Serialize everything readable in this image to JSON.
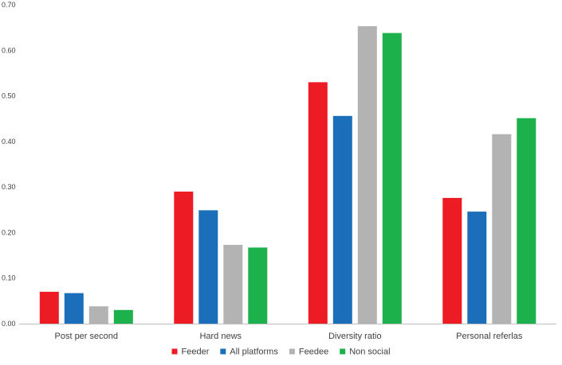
{
  "chart_data": {
    "type": "bar",
    "categories": [
      "Post per second",
      "Hard news",
      "Diversity ratio",
      "Personal referlas"
    ],
    "series": [
      {
        "name": "Feeder",
        "color": "#ED1C24",
        "values": [
          0.07,
          0.29,
          0.53,
          0.276
        ]
      },
      {
        "name": "All platforms",
        "color": "#1B6FBA",
        "values": [
          0.067,
          0.249,
          0.456,
          0.246
        ]
      },
      {
        "name": "Feedee",
        "color": "#B3B3B3",
        "values": [
          0.038,
          0.173,
          0.653,
          0.416
        ]
      },
      {
        "name": "Non social",
        "color": "#1DB14B",
        "values": [
          0.03,
          0.167,
          0.638,
          0.451
        ]
      }
    ],
    "ylim": [
      0,
      0.7
    ],
    "yticks": [
      "0.00",
      "0.10",
      "0.20",
      "0.30",
      "0.40",
      "0.50",
      "0.60",
      "0.70"
    ],
    "grid": false,
    "legend_position": "bottom-center"
  }
}
